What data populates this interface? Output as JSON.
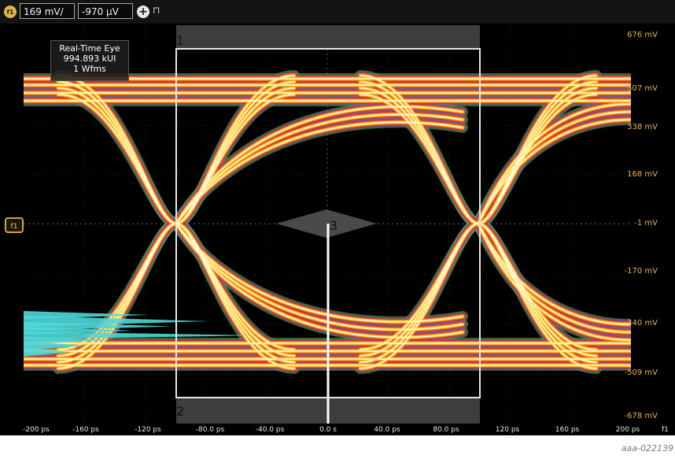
{
  "toolbar": {
    "channel": "f1",
    "scale": "169 mV/",
    "offset": "-970 µV"
  },
  "info": {
    "title": "Real-Time Eye",
    "ui": "994.893 kUI",
    "wfms": "1 Wfms"
  },
  "cursors": {
    "c1": "1",
    "c2": "2",
    "c3": "3"
  },
  "yaxis": {
    "ticks": [
      "676 mV",
      "507 mV",
      "338 mV",
      "168 mV",
      "-1 mV",
      "-170 mV",
      "-340 mV",
      "-509 mV",
      "-678 mV"
    ]
  },
  "xaxis": {
    "ticks": [
      "-200 ps",
      "-160 ps",
      "-120 ps",
      "-80.0 ps",
      "-40.0 ps",
      "0.0 s",
      "40.0 ps",
      "80.0 ps",
      "120 ps",
      "160 ps",
      "200 ps"
    ],
    "source": "f1"
  },
  "side_marker": "f1",
  "caption": "aaa-022139",
  "colors": {
    "trace_core": "#fffbe0",
    "trace_inner": "#ffd23c",
    "trace_mid": "#f08a24",
    "trace_edge": "#d42a2a",
    "trace_outer": "#3fc24a",
    "trace_haze": "#9b3fb8",
    "cyan": "#4fd8d8",
    "axis_label": "#e9b34a"
  }
}
